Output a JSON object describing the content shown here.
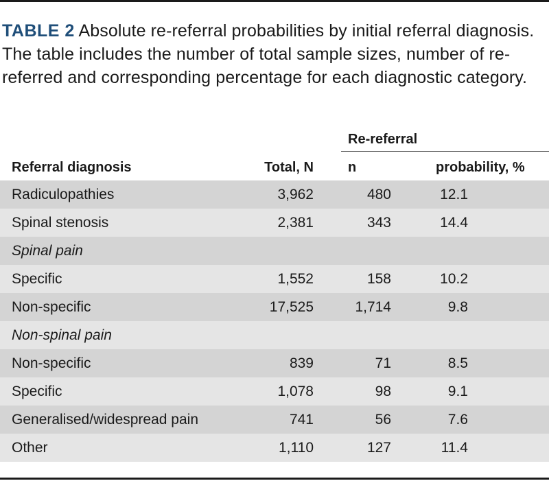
{
  "caption": {
    "label": "TABLE 2",
    "text": "Absolute re-referral probabilities by initial referral diagnosis. The table includes the number of total sample sizes, number of re-referred and corresponding percentage for each diagnostic category."
  },
  "headers": {
    "group": "Re-referral",
    "diagnosis": "Referral diagnosis",
    "total": "Total, N",
    "n": "n",
    "probability": "probability, %"
  },
  "rows": [
    {
      "diagnosis": "Radiculopathies",
      "total": "3,962",
      "n": "480",
      "probability": "12.1"
    },
    {
      "diagnosis": "Spinal stenosis",
      "total": "2,381",
      "n": "343",
      "probability": "14.4"
    },
    {
      "diagnosis": "Spinal pain",
      "total": "",
      "n": "",
      "probability": ""
    },
    {
      "diagnosis": "Specific",
      "total": "1,552",
      "n": "158",
      "probability": "10.2"
    },
    {
      "diagnosis": "Non-specific",
      "total": "17,525",
      "n": "1,714",
      "probability": "9.8"
    },
    {
      "diagnosis": "Non-spinal pain",
      "total": "",
      "n": "",
      "probability": ""
    },
    {
      "diagnosis": "Non-specific",
      "total": "839",
      "n": "71",
      "probability": "8.5"
    },
    {
      "diagnosis": "Specific",
      "total": "1,078",
      "n": "98",
      "probability": "9.1"
    },
    {
      "diagnosis": "Generalised/widespread pain",
      "total": "741",
      "n": "56",
      "probability": "7.6"
    },
    {
      "diagnosis": "Other",
      "total": "1,110",
      "n": "127",
      "probability": "11.4"
    }
  ],
  "colors": {
    "label": "#1f4e79",
    "band_dark": "#d4d4d4",
    "band_light": "#e5e5e5"
  }
}
